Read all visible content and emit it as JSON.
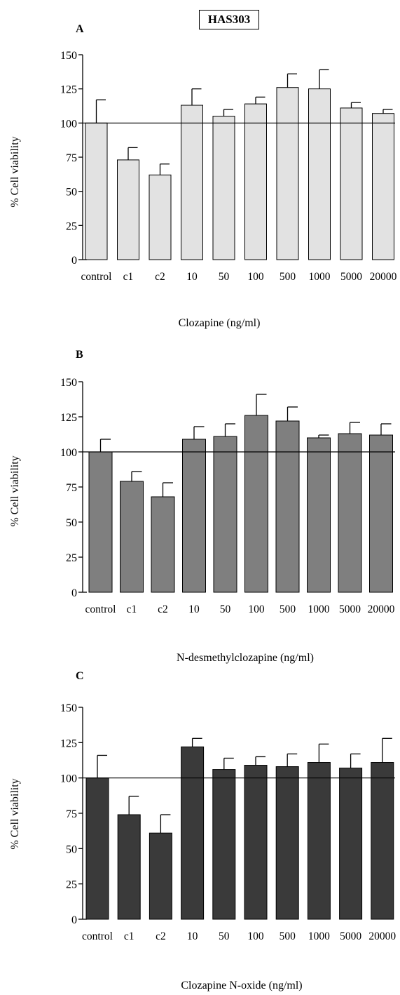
{
  "figure_title": "HAS303",
  "chart_data": [
    {
      "type": "bar",
      "panel_label": "A",
      "categories": [
        "control",
        "c1",
        "c2",
        "10",
        "50",
        "100",
        "500",
        "1000",
        "5000",
        "20000"
      ],
      "values": [
        100,
        73,
        62,
        113,
        105,
        114,
        126,
        125,
        111,
        107
      ],
      "errors": [
        17,
        9,
        8,
        12,
        5,
        5,
        10,
        14,
        4,
        3
      ],
      "ylabel": "% Cell viability",
      "xlabel": "Clozapine (ng/ml)",
      "ylim": [
        0,
        150
      ],
      "yticks": [
        0,
        25,
        50,
        75,
        100,
        125,
        150
      ],
      "reference_line": 100,
      "bar_color": "#e2e2e2"
    },
    {
      "type": "bar",
      "panel_label": "B",
      "categories": [
        "control",
        "c1",
        "c2",
        "10",
        "50",
        "100",
        "500",
        "1000",
        "5000",
        "20000"
      ],
      "values": [
        100,
        79,
        68,
        109,
        111,
        126,
        122,
        110,
        113,
        112
      ],
      "errors": [
        9,
        7,
        10,
        9,
        9,
        15,
        10,
        2,
        8,
        8
      ],
      "ylabel": "% Cell viability",
      "xlabel": "N-desmethylclozapine (ng/ml)",
      "ylim": [
        0,
        150
      ],
      "yticks": [
        0,
        25,
        50,
        75,
        100,
        125,
        150
      ],
      "reference_line": 100,
      "bar_color": "#7f7f7f"
    },
    {
      "type": "bar",
      "panel_label": "C",
      "categories": [
        "control",
        "c1",
        "c2",
        "10",
        "50",
        "100",
        "500",
        "1000",
        "5000",
        "20000"
      ],
      "values": [
        100,
        74,
        61,
        122,
        106,
        109,
        108,
        111,
        107,
        111
      ],
      "errors": [
        16,
        13,
        13,
        6,
        8,
        6,
        9,
        13,
        10,
        17
      ],
      "ylabel": "% Cell viability",
      "xlabel": "Clozapine N-oxide (ng/ml)",
      "ylim": [
        0,
        150
      ],
      "yticks": [
        0,
        25,
        50,
        75,
        100,
        125,
        150
      ],
      "reference_line": 100,
      "bar_color": "#3a3a3a"
    }
  ]
}
